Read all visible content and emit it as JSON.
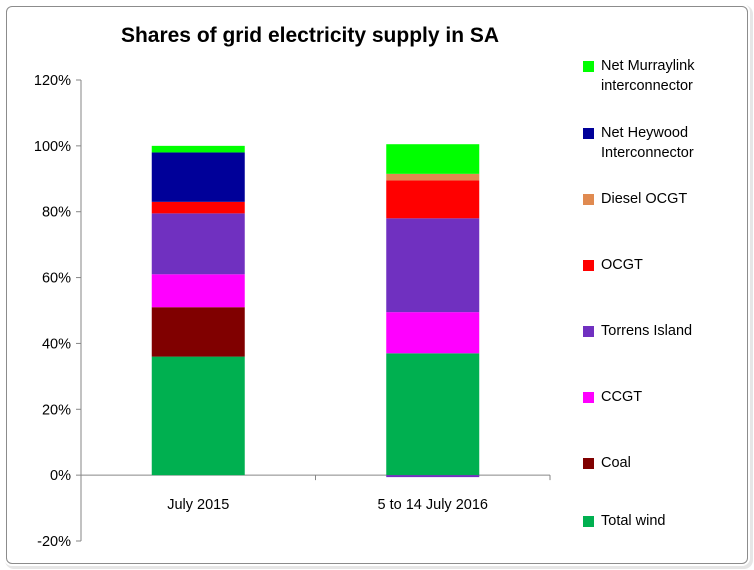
{
  "chart_data": {
    "type": "bar",
    "stacked": true,
    "title": "Shares of grid electricity supply in SA",
    "categories": [
      "July 2015",
      "5 to 14 July 2016"
    ],
    "ylim": [
      -20,
      120
    ],
    "yticks": [
      "-20%",
      "0%",
      "20%",
      "40%",
      "60%",
      "80%",
      "100%",
      "120%"
    ],
    "ytick_values": [
      -20,
      0,
      20,
      40,
      60,
      80,
      100,
      120
    ],
    "grid": false,
    "legend_position": "right",
    "series": [
      {
        "name": "Total wind",
        "color": "#00b050",
        "values": [
          36,
          37
        ]
      },
      {
        "name": "Coal",
        "color": "#800000",
        "values": [
          15,
          0
        ]
      },
      {
        "name": "CCGT",
        "color": "#ff00ff",
        "values": [
          10,
          12.5
        ]
      },
      {
        "name": "Torrens Island",
        "color": "#7030c0",
        "values": [
          18.5,
          28.5
        ]
      },
      {
        "name": "OCGT",
        "color": "#ff0000",
        "values": [
          3.5,
          11.5
        ]
      },
      {
        "name": "Diesel OCGT",
        "color": "#e08a50",
        "values": [
          0,
          2
        ]
      },
      {
        "name": "Net Heywood Interconnector",
        "color": "#000099",
        "values": [
          15,
          0
        ]
      },
      {
        "name": "Net Murraylink interconnector",
        "color": "#00ff00",
        "values": [
          2,
          9
        ]
      }
    ],
    "negative": [
      {
        "name": "Torrens Island",
        "color": "#7030c0",
        "values": [
          0,
          -0.6
        ]
      }
    ]
  },
  "legend": {
    "items": [
      {
        "label": "Net Murraylink interconnector",
        "color": "#00ff00"
      },
      {
        "label": "Net Heywood Interconnector",
        "color": "#000099"
      },
      {
        "label": "Diesel OCGT",
        "color": "#e08a50"
      },
      {
        "label": "OCGT",
        "color": "#ff0000"
      },
      {
        "label": "Torrens Island",
        "color": "#7030c0"
      },
      {
        "label": "CCGT",
        "color": "#ff00ff"
      },
      {
        "label": "Coal",
        "color": "#800000"
      },
      {
        "label": "Total wind",
        "color": "#00b050"
      }
    ]
  }
}
